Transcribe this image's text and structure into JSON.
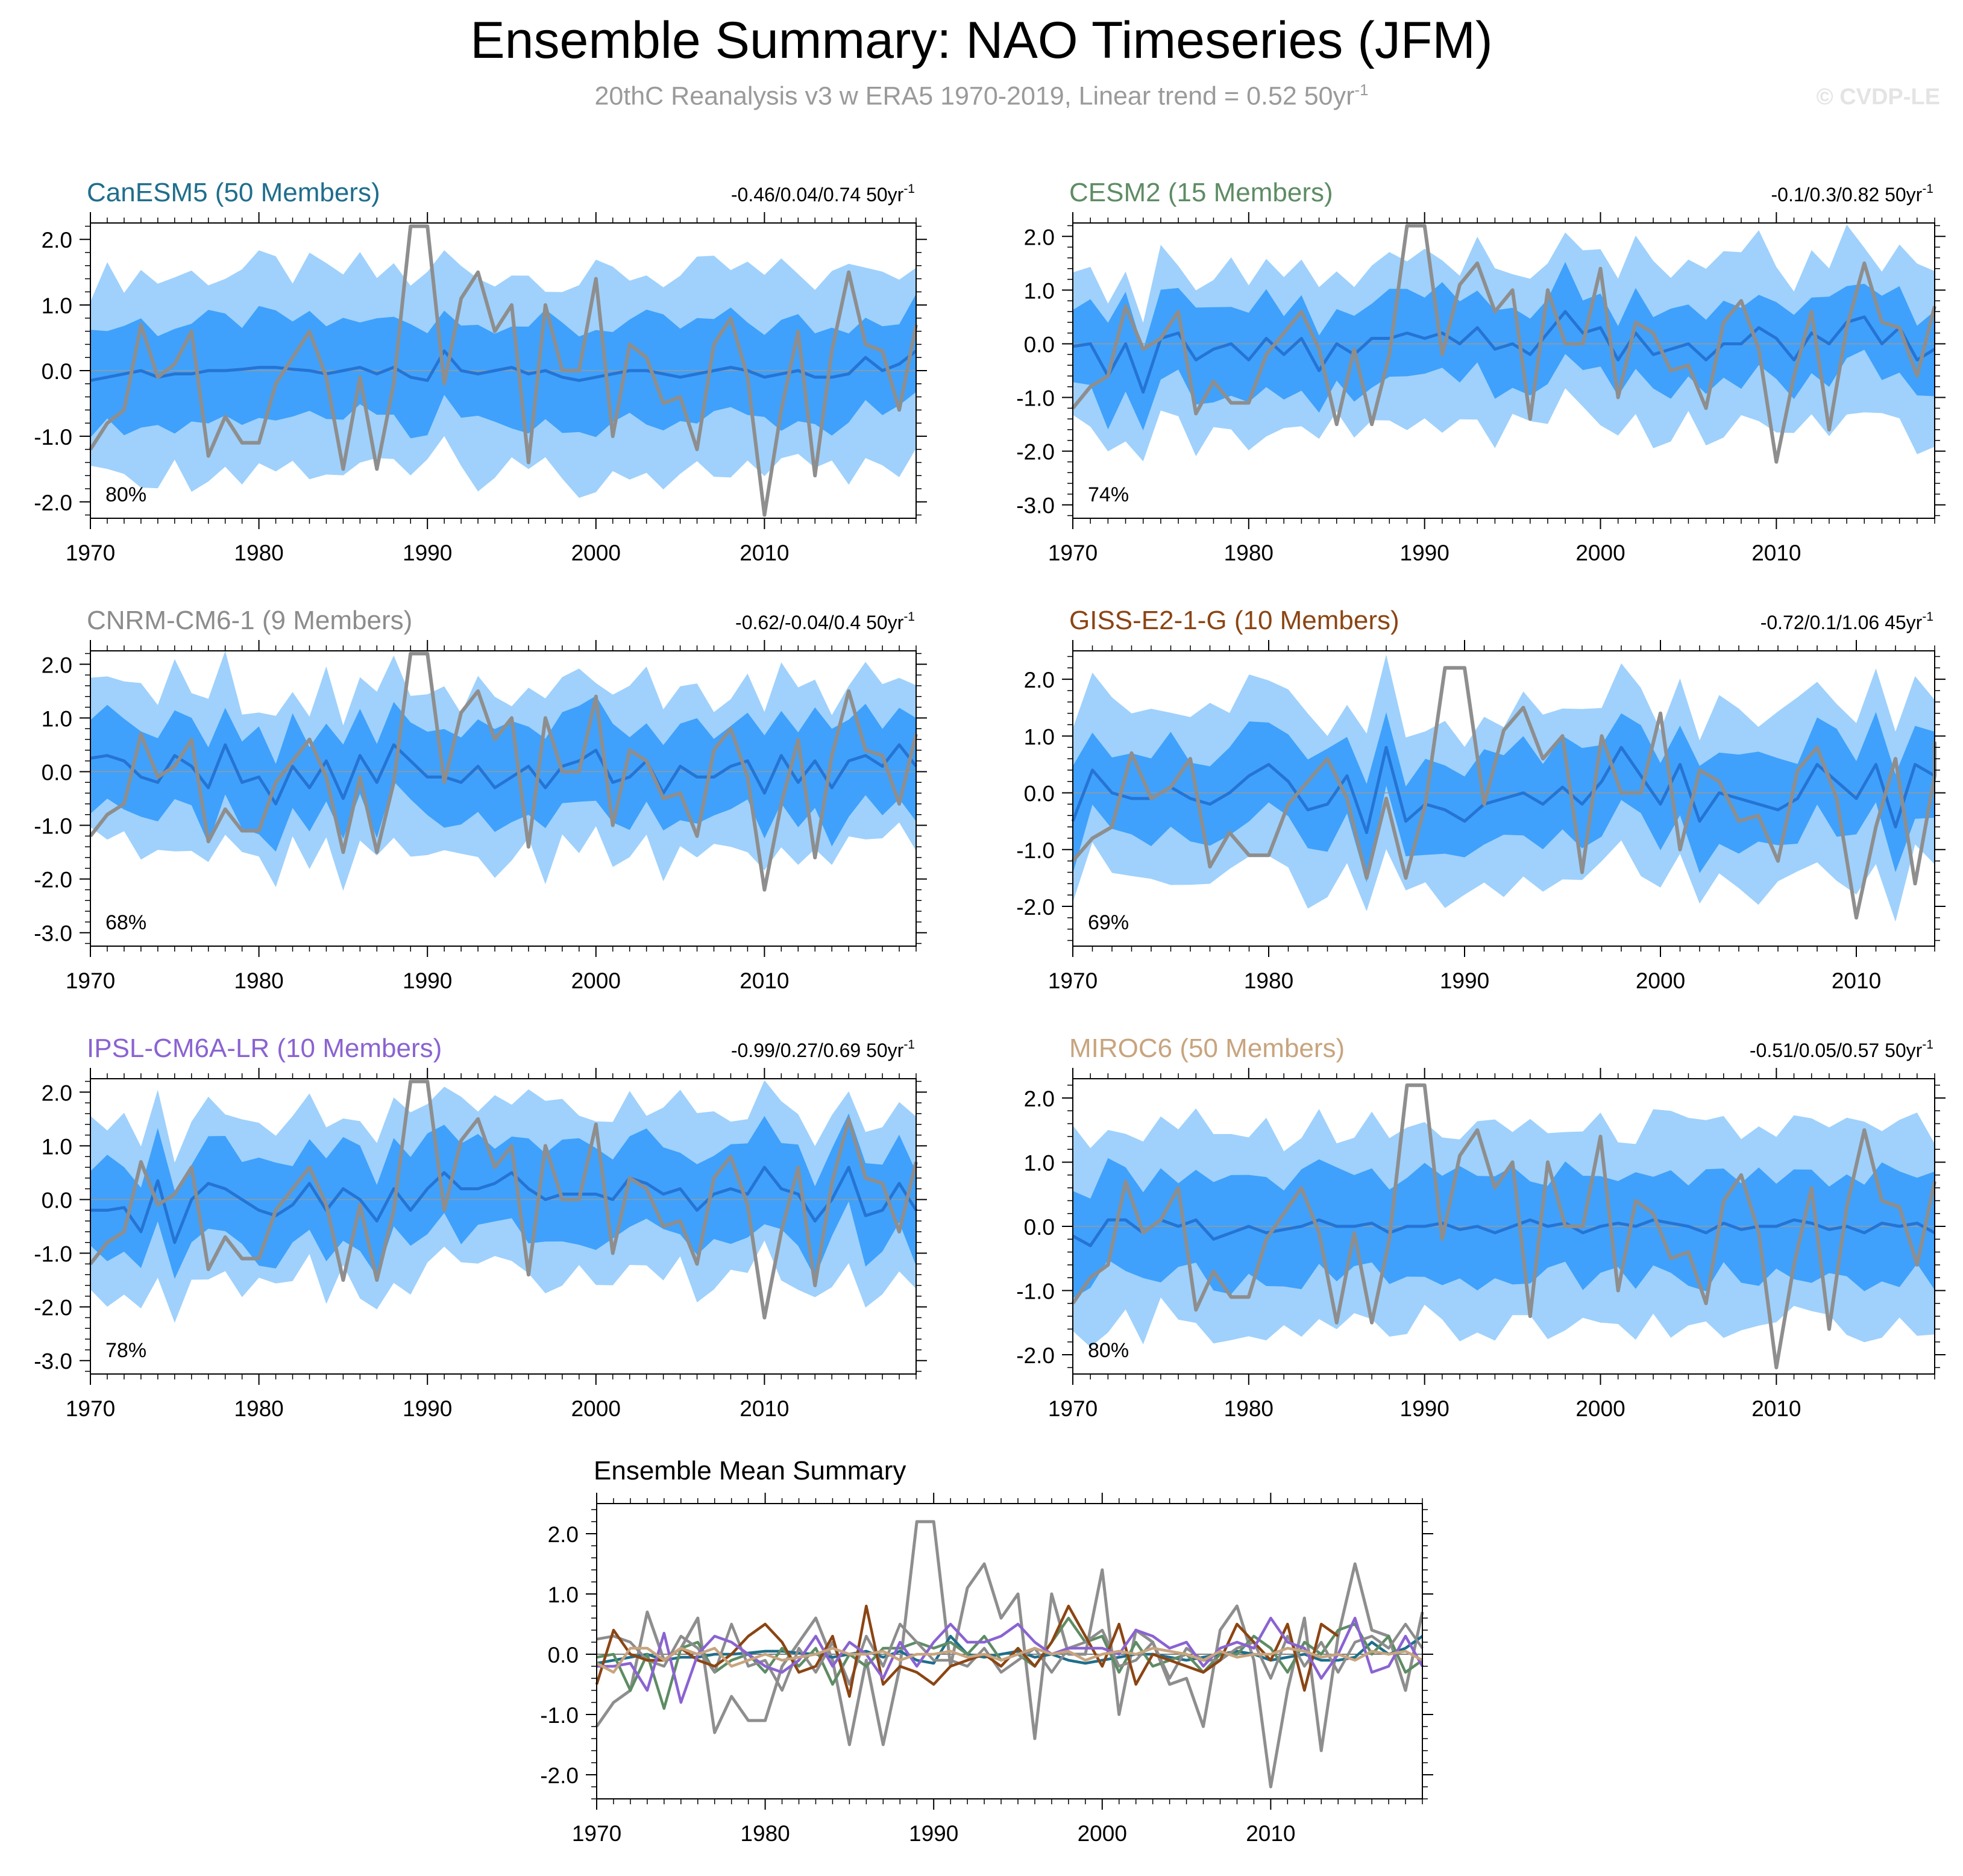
{
  "title": "Ensemble Summary: NAO Timeseries (JFM)",
  "subtitle": {
    "text": "20thC Reanalysis v3 w ERA5 1970-2019, Linear trend = 0.52 50yr",
    "exponent": "-1"
  },
  "credit": "© CVDP-LE",
  "colors": {
    "outer_band": "#9fd1fc",
    "inner_band": "#3fa1fb",
    "ens_mean": "#2574d4",
    "obs": "#8e8e8e",
    "zero_line": "#9a9a9a"
  },
  "chart_data": {
    "type": "line",
    "x_ticks": [
      1970,
      1980,
      1990,
      2000,
      2010
    ],
    "xlim": [
      1970,
      2019
    ],
    "observations": {
      "name": "20thC Reanalysis v3 w ERA5",
      "x": [
        1970,
        1971,
        1972,
        1973,
        1974,
        1975,
        1976,
        1977,
        1978,
        1979,
        1980,
        1981,
        1982,
        1983,
        1984,
        1985,
        1986,
        1987,
        1988,
        1989,
        1990,
        1991,
        1992,
        1993,
        1994,
        1995,
        1996,
        1997,
        1998,
        1999,
        2000,
        2001,
        2002,
        2003,
        2004,
        2005,
        2006,
        2007,
        2008,
        2009,
        2010,
        2011,
        2012,
        2013,
        2014,
        2015,
        2016,
        2017,
        2018,
        2019
      ],
      "values": [
        -1.2,
        -0.8,
        -0.6,
        0.7,
        -0.1,
        0.1,
        0.6,
        -1.3,
        -0.7,
        -1.1,
        -1.1,
        -0.2,
        0.2,
        0.6,
        -0.1,
        -1.5,
        -0.1,
        -1.5,
        -0.2,
        2.2,
        2.2,
        -0.2,
        1.1,
        1.5,
        0.6,
        1.0,
        -1.4,
        1.0,
        0.0,
        0.0,
        1.4,
        -1.0,
        0.4,
        0.2,
        -0.5,
        -0.4,
        -1.2,
        0.4,
        0.8,
        -0.1,
        -2.2,
        -0.6,
        0.6,
        -1.6,
        0.3,
        1.5,
        0.4,
        0.3,
        -0.6,
        0.7
      ]
    },
    "panels": [
      {
        "name": "CanESM5",
        "title": "CanESM5 (50 Members)",
        "title_color": "#1f6e8c",
        "trend": "-0.46/0.04/0.74 50yr",
        "trend_exp": "-1",
        "pct": "80%",
        "ylim": [
          -2.25,
          2.25
        ],
        "y_ticks": [
          -2.0,
          -1.0,
          0.0,
          1.0,
          2.0
        ],
        "y_tick_labels": [
          "-2.0",
          "-1.0",
          "0.0",
          "1.0",
          "2.0"
        ],
        "mean": [
          -0.15,
          -0.1,
          -0.05,
          0.0,
          -0.1,
          -0.05,
          -0.05,
          0.0,
          0.0,
          0.02,
          0.05,
          0.05,
          0.02,
          0.0,
          -0.05,
          0.0,
          0.05,
          -0.05,
          0.05,
          -0.1,
          -0.15,
          0.3,
          0.0,
          -0.05,
          0.0,
          0.05,
          -0.05,
          0.0,
          -0.1,
          -0.15,
          -0.1,
          -0.05,
          0.0,
          0.0,
          -0.05,
          -0.1,
          -0.05,
          0.0,
          0.05,
          0.0,
          -0.1,
          -0.05,
          0.0,
          -0.1,
          -0.1,
          -0.05,
          0.2,
          0.0,
          0.1,
          0.3
        ],
        "amp_inner": 0.75,
        "amp_outer": 1.5
      },
      {
        "name": "CESM2",
        "title": "CESM2 (15 Members)",
        "title_color": "#5e8c64",
        "trend": "-0.1/0.3/0.82 50yr",
        "trend_exp": "-1",
        "pct": "74%",
        "ylim": [
          -3.25,
          2.25
        ],
        "y_ticks": [
          -3.0,
          -2.0,
          -1.0,
          0.0,
          1.0,
          2.0
        ],
        "y_tick_labels": [
          "-3.0",
          "-2.0",
          "-1.0",
          "0.0",
          "1.0",
          "2.0"
        ],
        "mean": [
          -0.05,
          0.0,
          -0.6,
          0.0,
          -0.9,
          0.1,
          0.2,
          -0.3,
          -0.1,
          0.0,
          -0.3,
          0.1,
          -0.2,
          0.1,
          -0.5,
          0.0,
          -0.2,
          0.1,
          0.1,
          0.2,
          0.1,
          0.2,
          0.0,
          0.3,
          -0.1,
          0.0,
          -0.2,
          0.2,
          0.6,
          0.2,
          0.3,
          -0.3,
          0.2,
          -0.2,
          -0.1,
          0.0,
          -0.3,
          0.0,
          0.0,
          0.3,
          0.1,
          -0.3,
          0.2,
          0.0,
          0.4,
          0.5,
          0.0,
          0.3,
          -0.3,
          -0.1
        ],
        "amp_inner": 0.8,
        "amp_outer": 1.55
      },
      {
        "name": "CNRM-CM6-1",
        "title": "CNRM-CM6-1 (9 Members)",
        "title_color": "#8c8c8c",
        "trend": "-0.62/-0.04/0.4 50yr",
        "trend_exp": "-1",
        "pct": "68%",
        "ylim": [
          -3.25,
          2.25
        ],
        "y_ticks": [
          -3.0,
          -2.0,
          -1.0,
          0.0,
          1.0,
          2.0
        ],
        "y_tick_labels": [
          "-3.0",
          "-2.0",
          "-1.0",
          "0.0",
          "1.0",
          "2.0"
        ],
        "mean": [
          0.25,
          0.3,
          0.2,
          -0.1,
          -0.2,
          0.3,
          0.1,
          -0.3,
          0.5,
          -0.2,
          -0.1,
          -0.6,
          0.1,
          -0.3,
          0.2,
          -0.5,
          0.3,
          -0.2,
          0.5,
          0.2,
          -0.1,
          -0.1,
          -0.2,
          0.1,
          -0.3,
          -0.1,
          0.1,
          -0.3,
          0.1,
          0.2,
          0.4,
          -0.2,
          -0.1,
          0.2,
          -0.4,
          0.1,
          -0.1,
          -0.1,
          0.1,
          0.2,
          -0.4,
          0.3,
          -0.2,
          0.2,
          -0.3,
          0.2,
          0.3,
          0.1,
          0.5,
          0.1
        ],
        "amp_inner": 0.9,
        "amp_outer": 1.5
      },
      {
        "name": "GISS-E2-1-G",
        "title": "GISS-E2-1-G (10 Members)",
        "title_color": "#8b4513",
        "trend": "-0.72/0.1/1.06 45yr",
        "trend_exp": "-1",
        "pct": "69%",
        "ylim": [
          -2.7,
          2.5
        ],
        "y_ticks": [
          -2.0,
          -1.0,
          0.0,
          1.0,
          2.0
        ],
        "y_tick_labels": [
          "-2.0",
          "-1.0",
          "0.0",
          "1.0",
          "2.0"
        ],
        "mean": [
          -0.5,
          0.4,
          0.0,
          -0.1,
          -0.1,
          0.1,
          -0.1,
          -0.2,
          0.0,
          0.3,
          0.5,
          0.2,
          -0.3,
          -0.2,
          0.3,
          -0.7,
          0.8,
          -0.5,
          -0.2,
          -0.3,
          -0.5,
          -0.2,
          -0.1,
          0.0,
          -0.2,
          0.1,
          -0.2,
          0.2,
          0.8,
          0.3,
          -0.2,
          0.5,
          -0.5,
          0.0,
          -0.1,
          -0.2,
          -0.3,
          -0.1,
          0.5,
          0.2,
          -0.1,
          0.5,
          -0.6,
          0.5,
          0.3
        ],
        "amp_inner": 0.8,
        "amp_outer": 1.5
      },
      {
        "name": "IPSL-CM6A-LR",
        "title": "IPSL-CM6A-LR (10 Members)",
        "title_color": "#8a63d2",
        "trend": "-0.99/0.27/0.69 50yr",
        "trend_exp": "-1",
        "pct": "78%",
        "ylim": [
          -3.25,
          2.25
        ],
        "y_ticks": [
          -3.0,
          -2.0,
          -1.0,
          0.0,
          1.0,
          2.0
        ],
        "y_tick_labels": [
          "-3.0",
          "-2.0",
          "-1.0",
          "0.0",
          "1.0",
          "2.0"
        ],
        "mean": [
          -0.2,
          -0.2,
          -0.15,
          -0.6,
          0.35,
          -0.8,
          0.0,
          0.3,
          0.2,
          0.0,
          -0.2,
          -0.3,
          -0.1,
          0.3,
          -0.2,
          0.2,
          0.0,
          -0.4,
          0.2,
          -0.2,
          0.2,
          0.5,
          0.2,
          0.2,
          0.3,
          0.5,
          0.2,
          0.0,
          0.1,
          0.1,
          0.1,
          0.0,
          0.4,
          0.3,
          0.1,
          0.2,
          -0.2,
          0.1,
          0.2,
          0.1,
          0.6,
          0.2,
          0.1,
          -0.4,
          0.0,
          0.6,
          -0.3,
          -0.2,
          0.3,
          -0.2
        ],
        "amp_inner": 0.85,
        "amp_outer": 1.55
      },
      {
        "name": "MIROC6",
        "title": "MIROC6 (50 Members)",
        "title_color": "#c8a47e",
        "trend": "-0.51/0.05/0.57 50yr",
        "trend_exp": "-1",
        "pct": "80%",
        "ylim": [
          -2.3,
          2.3
        ],
        "y_ticks": [
          -2.0,
          -1.0,
          0.0,
          1.0,
          2.0
        ],
        "y_tick_labels": [
          "-2.0",
          "-1.0",
          "0.0",
          "1.0",
          "2.0"
        ],
        "mean": [
          -0.15,
          -0.3,
          0.1,
          0.1,
          -0.1,
          0.1,
          0.0,
          0.1,
          -0.2,
          -0.1,
          0.0,
          -0.1,
          -0.05,
          0.0,
          0.1,
          0.0,
          0.0,
          0.05,
          -0.1,
          0.0,
          0.0,
          0.05,
          -0.05,
          0.0,
          -0.1,
          0.0,
          0.1,
          0.0,
          0.05,
          -0.1,
          0.0,
          0.05,
          0.0,
          0.1,
          0.05,
          0.0,
          -0.1,
          0.05,
          -0.05,
          0.0,
          0.0,
          0.1,
          0.05,
          -0.05,
          0.0,
          -0.1,
          0.05,
          0.0,
          0.05,
          -0.1
        ],
        "amp_inner": 0.8,
        "amp_outer": 1.5
      }
    ],
    "summary": {
      "title": "Ensemble Mean Summary",
      "ylim": [
        -2.4,
        2.5
      ],
      "y_ticks": [
        -2.0,
        -1.0,
        0.0,
        1.0,
        2.0
      ],
      "y_tick_labels": [
        "-2.0",
        "-1.0",
        "0.0",
        "1.0",
        "2.0"
      ]
    }
  }
}
